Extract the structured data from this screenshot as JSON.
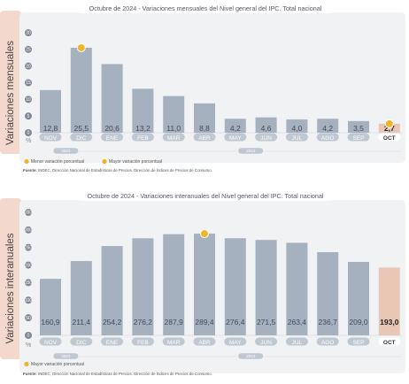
{
  "colors": {
    "bar": "#a6b1bf",
    "highlight_bar": "#e9c7b7",
    "panel_bg": "#f1f2f4",
    "side_band": "#f3d9cd",
    "marker": "#f0b429",
    "month_pill": "#bfc7d1",
    "year_pill": "#bfc7d1"
  },
  "charts": [
    {
      "title": "Octubre de 2024 - Variaciones mensuales del Nivel general del IPC. Total nacional",
      "ylabel": "Variaciones mensuales",
      "pct_symbol": "%",
      "legend": [
        {
          "icon": "min-marker-icon",
          "label": "Menor variación porcentual"
        },
        {
          "icon": "max-marker-icon",
          "label": "Mayor variación porcentual"
        }
      ],
      "years": [
        "2023",
        "2024"
      ],
      "source_label": "Fuente:",
      "source_text": "INDEC, Dirección Nacional de Estadísticas de Precios. Dirección de Índices de Precios de Consumo.",
      "ticks": [
        "30",
        "25",
        "20",
        "15",
        "10",
        "5",
        "0"
      ],
      "value_labels": [
        "12,8",
        "25,5",
        "20,6",
        "13,2",
        "11,0",
        "8,8",
        "4,2",
        "4,6",
        "4,0",
        "4,2",
        "3,5",
        "2,7"
      ]
    },
    {
      "title": "Octubre de 2024 - Variaciones interanuales del Nivel general del IPC. Total nacional",
      "ylabel": "Variaciones interanuales",
      "pct_symbol": "%",
      "legend": [
        {
          "icon": "max-marker-icon",
          "label": "Mayor variación porcentual"
        }
      ],
      "years": [
        "2023",
        "2024"
      ],
      "source_label": "Fuente:",
      "source_text": "INDEC, Dirección Nacional de Estadísticas de Precios. Dirección de Índices de Precios de Consumo.",
      "ticks": [
        "350",
        "300",
        "250",
        "200",
        "150",
        "100",
        "50",
        "0"
      ],
      "value_labels": [
        "160,9",
        "211,4",
        "254,2",
        "276,2",
        "287,9",
        "289,4",
        "276,4",
        "271,5",
        "263,4",
        "236,7",
        "209,0",
        "193,0"
      ]
    }
  ],
  "chart_data": [
    {
      "type": "bar",
      "title": "Octubre de 2024 - Variaciones mensuales del Nivel general del IPC. Total nacional",
      "ylabel": "Variaciones mensuales",
      "categories": [
        "NOV",
        "DIC",
        "ENE",
        "FEB",
        "MAR",
        "ABR",
        "MAY",
        "JUN",
        "JUL",
        "AGO",
        "SEP",
        "OCT"
      ],
      "values": [
        12.8,
        25.5,
        20.6,
        13.2,
        11.0,
        8.8,
        4.2,
        4.6,
        4.0,
        4.2,
        3.5,
        2.7
      ],
      "ylim": [
        0,
        30
      ],
      "yticks": [
        0,
        5,
        10,
        15,
        20,
        25,
        30
      ],
      "highlight_index": 11,
      "max_marker_index": 1,
      "min_marker_index": 11,
      "legend_position": "bottom-left",
      "grid": false
    },
    {
      "type": "bar",
      "title": "Octubre de 2024 - Variaciones interanuales del Nivel general del IPC. Total nacional",
      "ylabel": "Variaciones interanuales",
      "categories": [
        "NOV",
        "DIC",
        "ENE",
        "FEB",
        "MAR",
        "ABR",
        "MAY",
        "JUN",
        "JUL",
        "AGO",
        "SEP",
        "OCT"
      ],
      "values": [
        160.9,
        211.4,
        254.2,
        276.2,
        287.9,
        289.4,
        276.4,
        271.5,
        263.4,
        236.7,
        209.0,
        193.0
      ],
      "ylim": [
        0,
        350
      ],
      "yticks": [
        0,
        50,
        100,
        150,
        200,
        250,
        300,
        350
      ],
      "highlight_index": 11,
      "max_marker_index": 5,
      "min_marker_index": null,
      "legend_position": "bottom-left",
      "grid": false
    }
  ]
}
